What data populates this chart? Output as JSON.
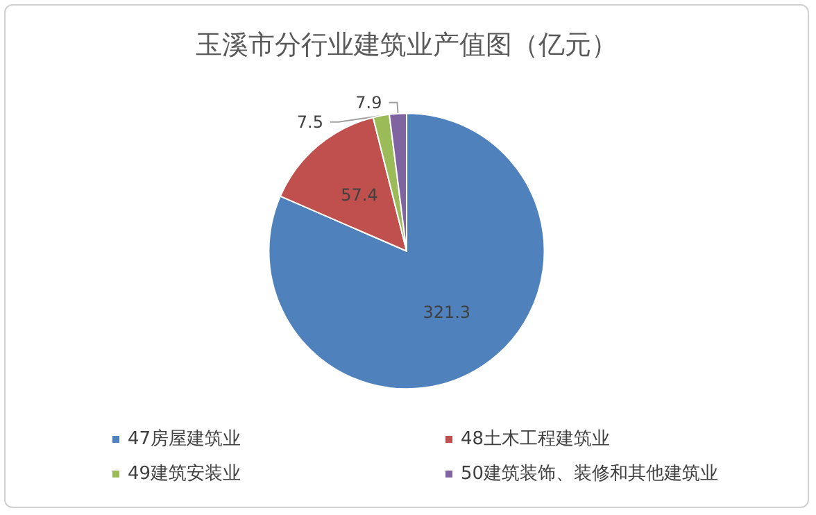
{
  "chart_data": {
    "type": "pie",
    "title": "玉溪市分行业建筑业产值图（亿元）",
    "categories": [
      "47房屋建筑业",
      "48土木工程建筑业",
      "49建筑安装业",
      "50建筑装饰、装修和其他建筑业"
    ],
    "values": [
      321.3,
      57.4,
      7.5,
      7.9
    ],
    "colors": [
      "#4f81bd",
      "#c0504d",
      "#9bbb59",
      "#8064a2"
    ],
    "data_labels": true,
    "legend": "bottom"
  }
}
